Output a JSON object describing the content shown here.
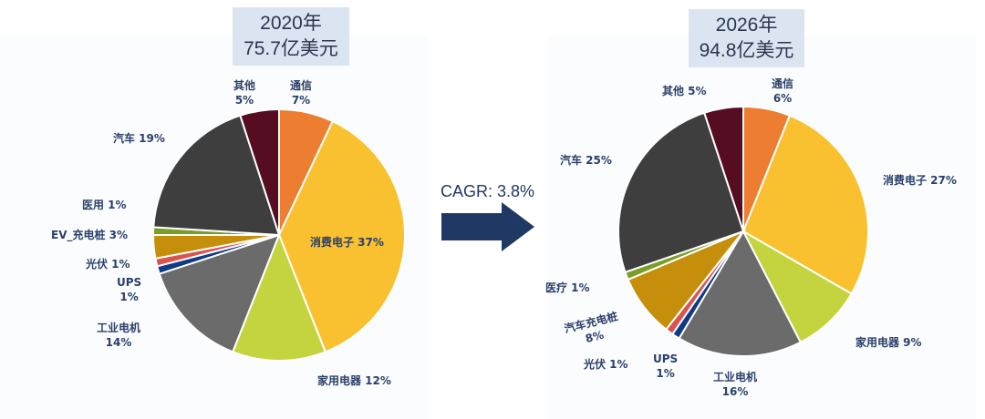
{
  "cagr_label": "CAGR: 3.8%",
  "chart_data": [
    {
      "type": "pie",
      "title_line1": "2020年",
      "title_line2": "75.7亿美元",
      "slices": [
        {
          "name": "通信",
          "value": 7,
          "label1": "通信",
          "label2": "7%",
          "color": "#ed7d31"
        },
        {
          "name": "消费电子",
          "value": 37,
          "label1": "消费电子 37%",
          "label2": "",
          "color": "#f9c02f"
        },
        {
          "name": "家用电器",
          "value": 12,
          "label1": "家用电器 12%",
          "label2": "",
          "color": "#c4d43f"
        },
        {
          "name": "工业电机",
          "value": 14,
          "label1": "工业电机",
          "label2": "14%",
          "color": "#6b6b6b"
        },
        {
          "name": "UPS",
          "value": 1,
          "label1": "UPS",
          "label2": "1%",
          "color": "#0e3a86"
        },
        {
          "name": "光伏",
          "value": 1,
          "label1": "光伏 1%",
          "label2": "",
          "color": "#d9534f"
        },
        {
          "name": "EV_充电桩",
          "value": 3,
          "label1": "EV_充电桩 3%",
          "label2": "",
          "color": "#c58f0c"
        },
        {
          "name": "医用",
          "value": 1,
          "label1": "医用 1%",
          "label2": "",
          "color": "#7a9e25"
        },
        {
          "name": "汽车",
          "value": 19,
          "label1": "汽车 19%",
          "label2": "",
          "color": "#3e3e3e"
        },
        {
          "name": "其他",
          "value": 5,
          "label1": "其他",
          "label2": "5%",
          "color": "#560d22"
        }
      ]
    },
    {
      "type": "pie",
      "title_line1": "2026年",
      "title_line2": "94.8亿美元",
      "slices": [
        {
          "name": "通信",
          "value": 6,
          "label1": "通信",
          "label2": "6%",
          "color": "#ed7d31"
        },
        {
          "name": "消费电子",
          "value": 27,
          "label1": "消费电子 27%",
          "label2": "",
          "color": "#f9c02f"
        },
        {
          "name": "家用电器",
          "value": 9,
          "label1": "家用电器 9%",
          "label2": "",
          "color": "#c4d43f"
        },
        {
          "name": "工业电机",
          "value": 16,
          "label1": "工业电机",
          "label2": "16%",
          "color": "#6b6b6b"
        },
        {
          "name": "UPS",
          "value": 1,
          "label1": "UPS",
          "label2": "1%",
          "color": "#0e3a86"
        },
        {
          "name": "光伏",
          "value": 1,
          "label1": "光伏 1%",
          "label2": "",
          "color": "#d9534f"
        },
        {
          "name": "汽车充电桩",
          "value": 8,
          "label1": "汽车充电桩",
          "label2": "8%",
          "color": "#c58f0c"
        },
        {
          "name": "医疗",
          "value": 1,
          "label1": "医疗 1%",
          "label2": "",
          "color": "#7a9e25"
        },
        {
          "name": "汽车",
          "value": 25,
          "label1": "汽车 25%",
          "label2": "",
          "color": "#3e3e3e"
        },
        {
          "name": "其他",
          "value": 5,
          "label1": "其他 5%",
          "label2": "",
          "color": "#560d22"
        }
      ]
    }
  ]
}
